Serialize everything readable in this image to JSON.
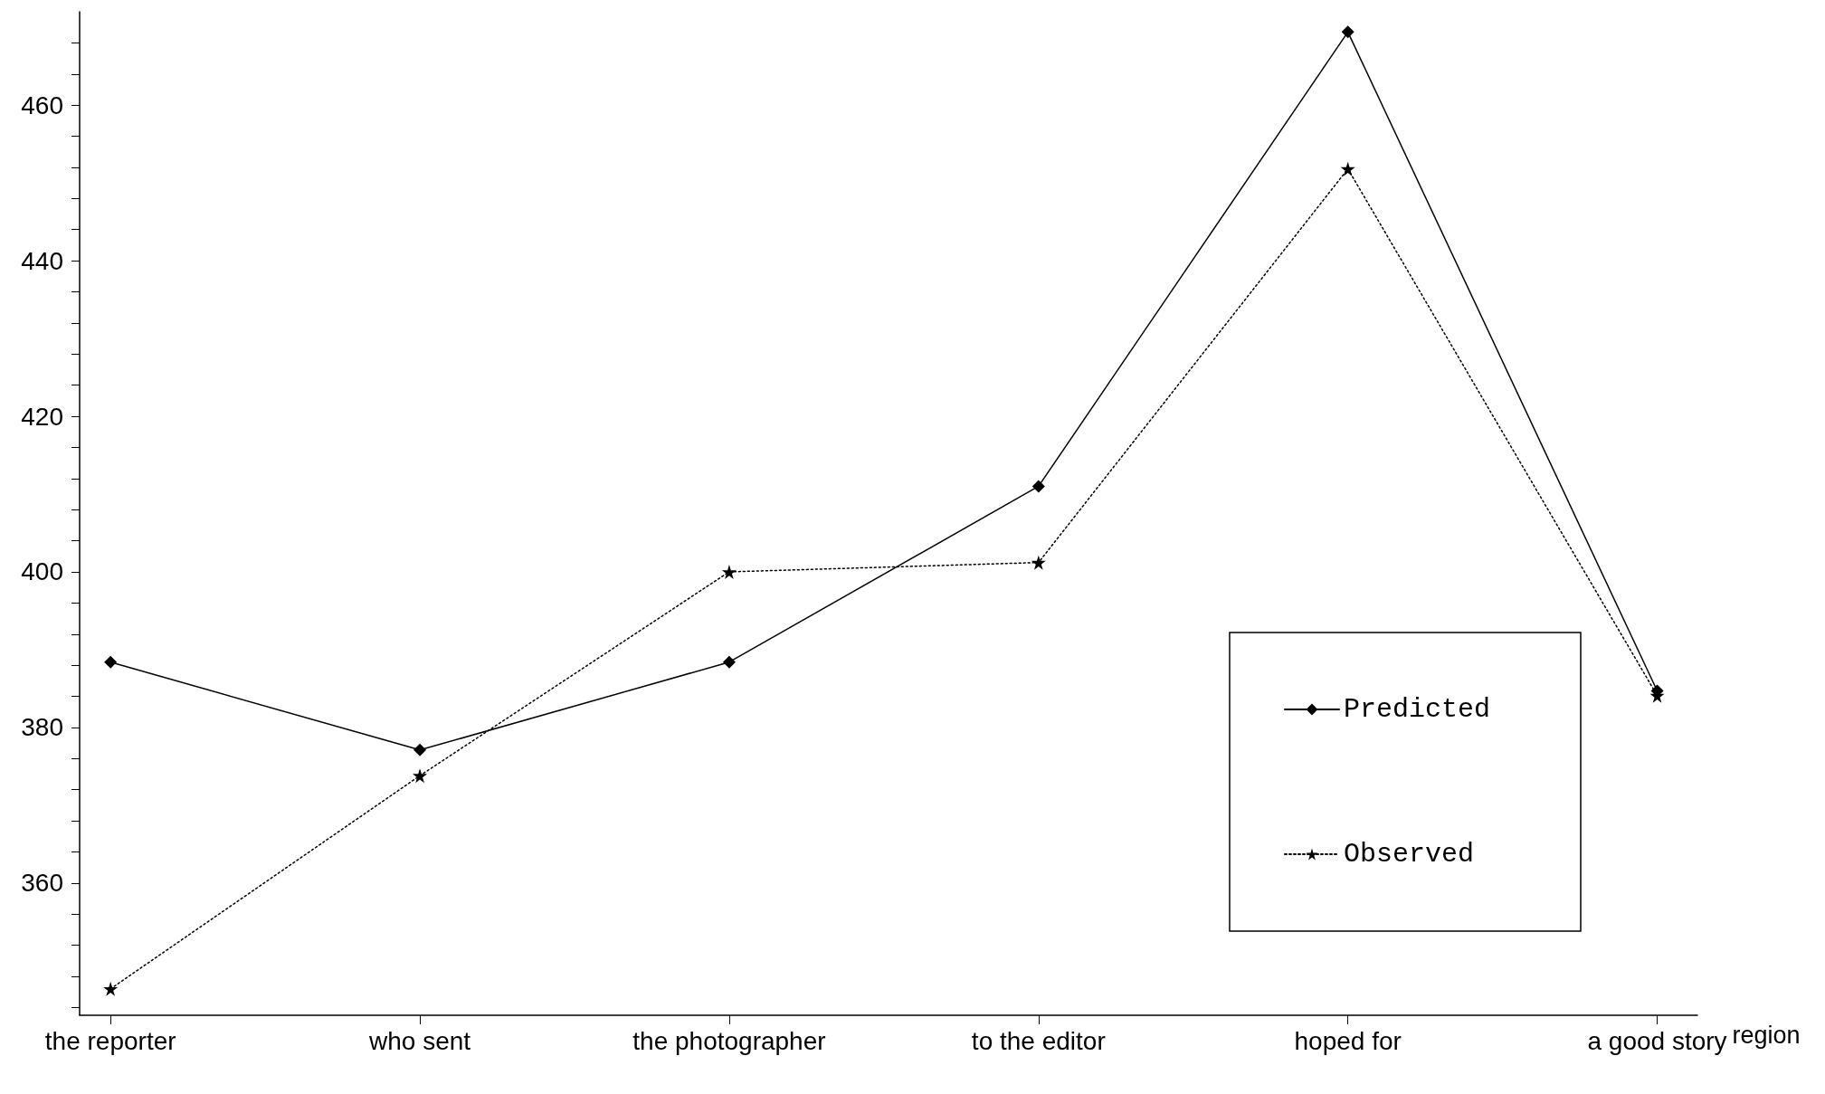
{
  "chart_data": {
    "type": "line",
    "xlabel": "region",
    "categories": [
      "the reporter",
      "who sent",
      "the photographer",
      "to the editor",
      "hoped for",
      "a good story"
    ],
    "series": [
      {
        "name": "Predicted",
        "color": "#000000",
        "marker": "diamond",
        "line_style": "solid",
        "values": [
          388.4,
          377.1,
          388.4,
          411.0,
          469.4,
          384.7
        ]
      },
      {
        "name": "Observed",
        "color": "#000000",
        "marker": "star",
        "line_style": "dotted",
        "values": [
          346.4,
          373.8,
          400.0,
          401.2,
          451.8,
          384.1
        ]
      }
    ],
    "ylim": [
      343,
      472
    ],
    "yticks": [
      {
        "value": 344,
        "label": null
      },
      {
        "value": 348,
        "label": null
      },
      {
        "value": 352,
        "label": null
      },
      {
        "value": 356,
        "label": null
      },
      360,
      {
        "value": 364,
        "label": null
      },
      {
        "value": 368,
        "label": null
      },
      {
        "value": 372,
        "label": null
      },
      {
        "value": 376,
        "label": null
      },
      380,
      {
        "value": 384,
        "label": null
      },
      {
        "value": 388,
        "label": null
      },
      {
        "value": 392,
        "label": null
      },
      {
        "value": 396,
        "label": null
      },
      400,
      {
        "value": 404,
        "label": null
      },
      {
        "value": 408,
        "label": null
      },
      {
        "value": 412,
        "label": null
      },
      {
        "value": 416,
        "label": null
      },
      420,
      {
        "value": 424,
        "label": null
      },
      {
        "value": 428,
        "label": null
      },
      {
        "value": 432,
        "label": null
      },
      {
        "value": 436,
        "label": null
      },
      440,
      {
        "value": 444,
        "label": null
      },
      {
        "value": 448,
        "label": null
      },
      {
        "value": 452,
        "label": null
      },
      {
        "value": 456,
        "label": null
      },
      460,
      {
        "value": 464,
        "label": null
      },
      {
        "value": 468,
        "label": null
      }
    ],
    "grid": false,
    "legend": "bottom right"
  }
}
